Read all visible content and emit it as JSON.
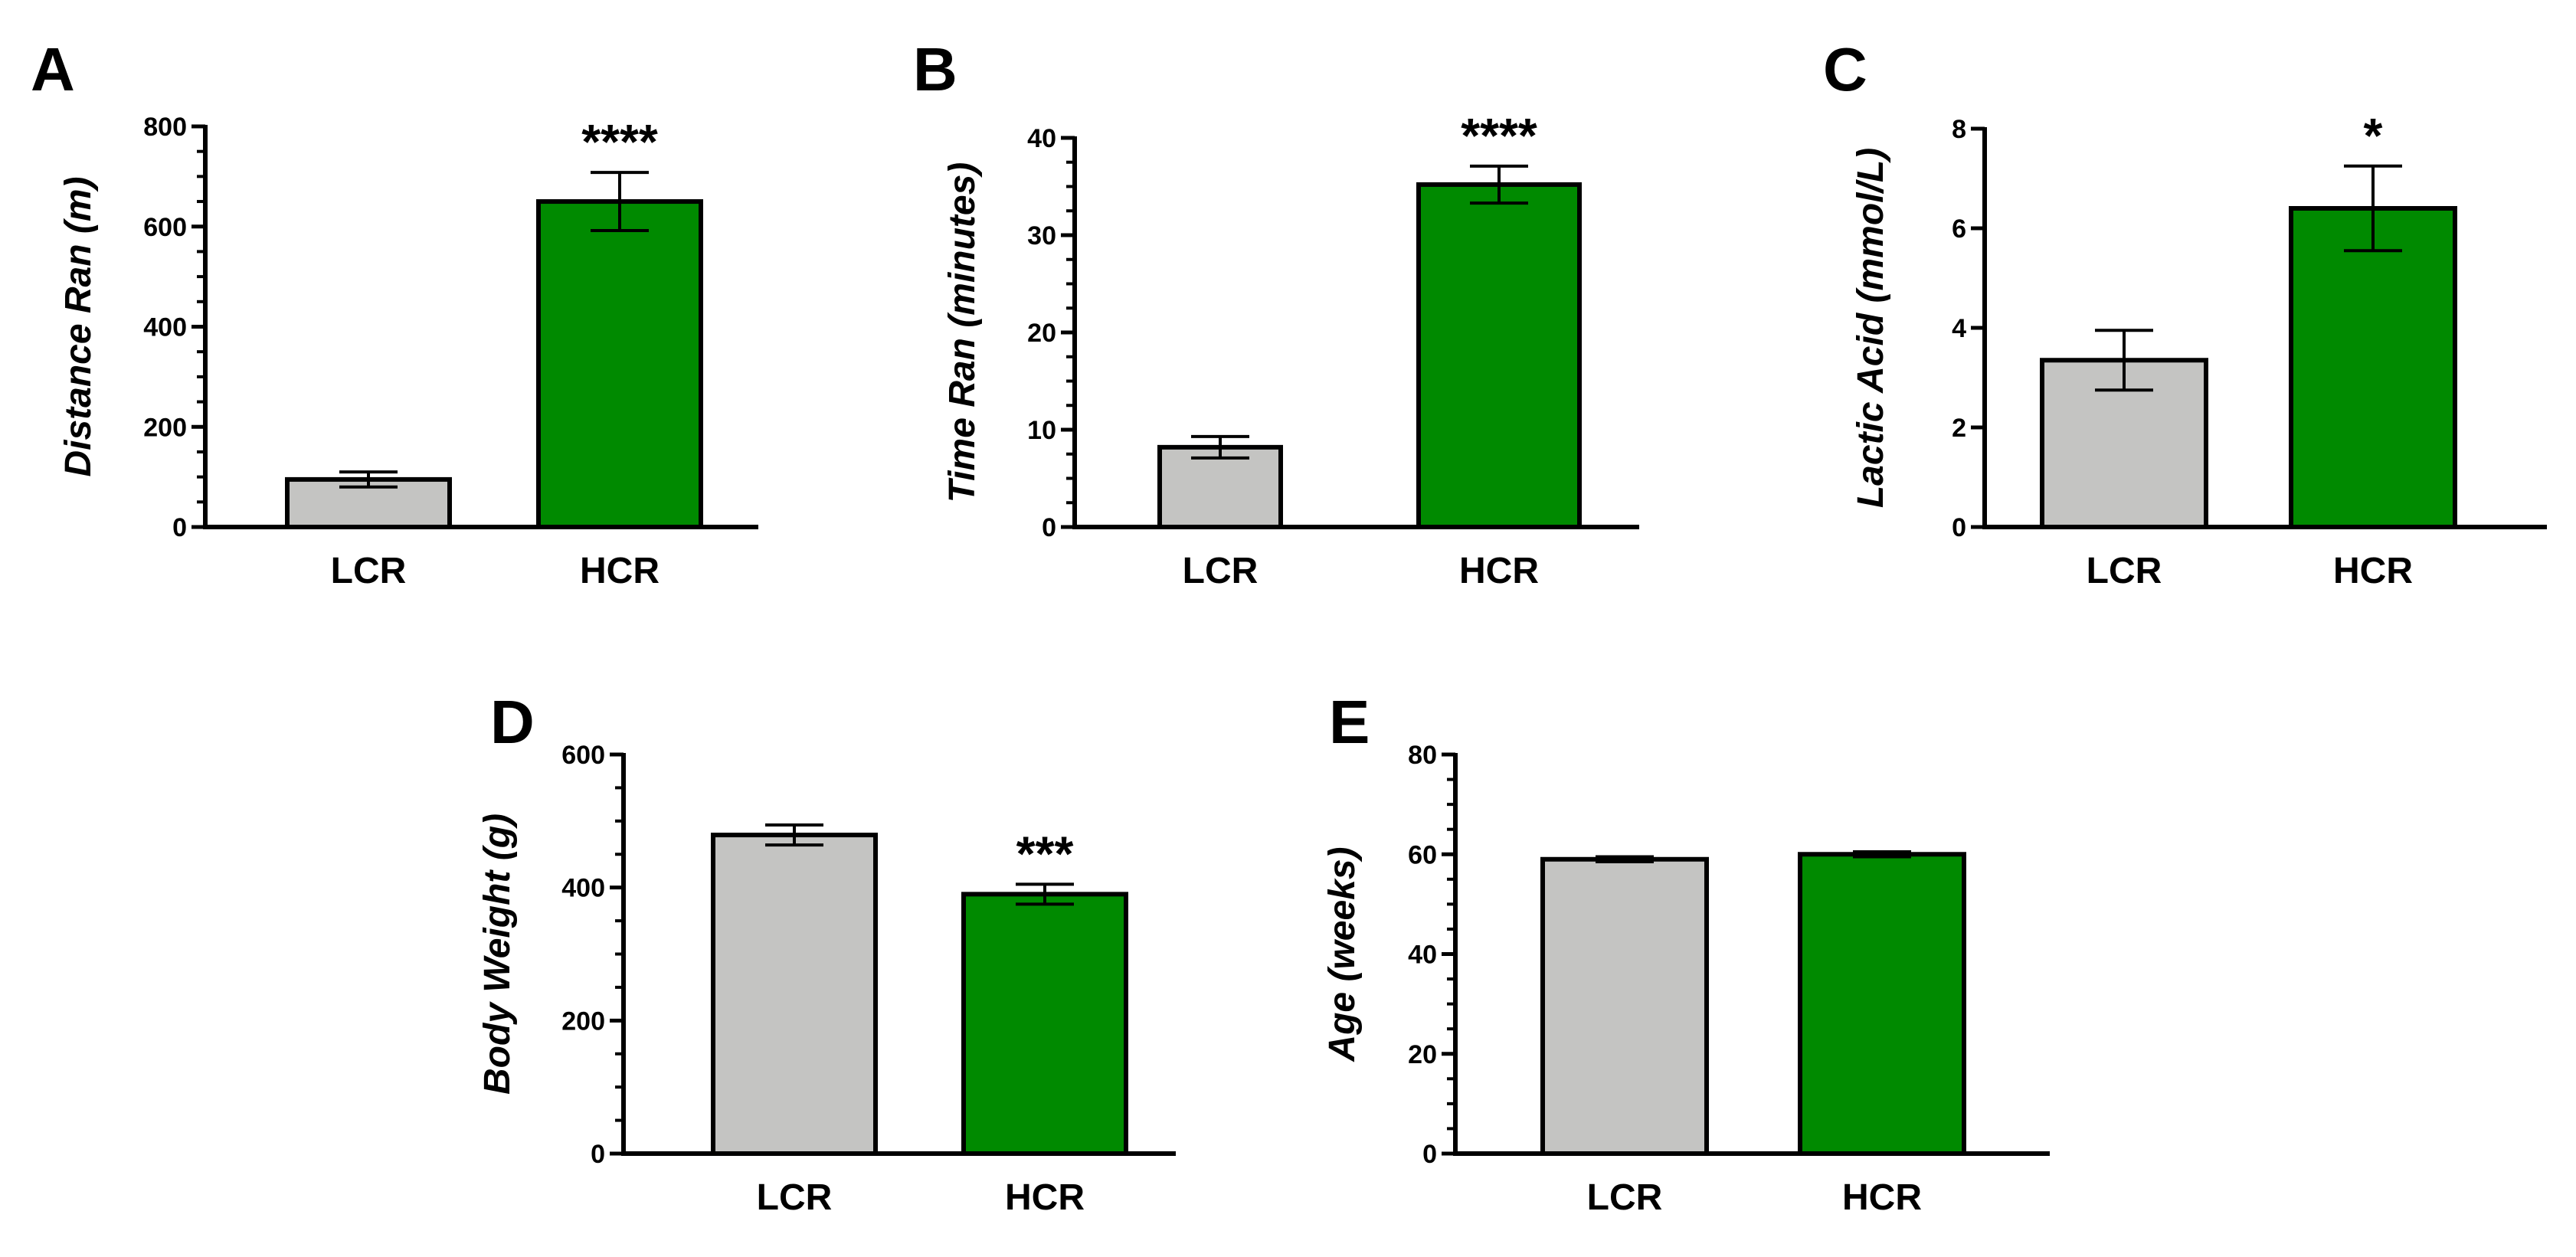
{
  "colors": {
    "lcr": "#c4c4c2",
    "hcr": "#008a00",
    "axis": "#000000"
  },
  "chart_data": [
    {
      "type": "bar",
      "panel": "A",
      "ylabel": "Distance Ran (m)",
      "ylim": [
        0,
        800
      ],
      "yticks": [
        0,
        200,
        400,
        600,
        800
      ],
      "tick_labels": [
        "0",
        "200",
        "400",
        "600",
        "800"
      ],
      "minor_ticks_per_major": 4,
      "categories": [
        "LCR",
        "HCR"
      ],
      "values": [
        95,
        650
      ],
      "errors": [
        15,
        58
      ],
      "significance": [
        "",
        "****"
      ]
    },
    {
      "type": "bar",
      "panel": "B",
      "ylabel": "Time Ran (minutes)",
      "ylim": [
        0,
        40
      ],
      "yticks": [
        0,
        10,
        20,
        30,
        40
      ],
      "tick_labels": [
        "0",
        "10",
        "20",
        "30",
        "40"
      ],
      "minor_ticks_per_major": 4,
      "categories": [
        "LCR",
        "HCR"
      ],
      "values": [
        8.2,
        35.2
      ],
      "errors": [
        1.1,
        1.9
      ],
      "significance": [
        "",
        "****"
      ]
    },
    {
      "type": "bar",
      "panel": "C",
      "ylabel": "Lactic Acid (mmol/L)",
      "ylim": [
        0,
        8
      ],
      "yticks": [
        0,
        2,
        4,
        6,
        8
      ],
      "tick_labels": [
        "0",
        "2",
        "4",
        "6",
        "8"
      ],
      "minor_ticks_per_major": 1,
      "categories": [
        "LCR",
        "HCR"
      ],
      "values": [
        3.35,
        6.4
      ],
      "errors": [
        0.6,
        0.85
      ],
      "significance": [
        "",
        "*"
      ]
    },
    {
      "type": "bar",
      "panel": "D",
      "ylabel": "Body Weight (g)",
      "ylim": [
        0,
        600
      ],
      "yticks": [
        0,
        200,
        400,
        600
      ],
      "tick_labels": [
        "0",
        "200",
        "400",
        "600"
      ],
      "minor_ticks_per_major": 4,
      "categories": [
        "LCR",
        "HCR"
      ],
      "values": [
        479,
        390
      ],
      "errors": [
        15,
        15
      ],
      "significance": [
        "",
        "***"
      ]
    },
    {
      "type": "bar",
      "panel": "E",
      "ylabel": "Age (weeks)",
      "ylim": [
        0,
        80
      ],
      "yticks": [
        0,
        20,
        40,
        60,
        80
      ],
      "tick_labels": [
        "0",
        "20",
        "40",
        "60",
        "80"
      ],
      "minor_ticks_per_major": 4,
      "categories": [
        "LCR",
        "HCR"
      ],
      "values": [
        59,
        60
      ],
      "errors": [
        0.5,
        0.5
      ],
      "significance": [
        "",
        ""
      ]
    }
  ]
}
